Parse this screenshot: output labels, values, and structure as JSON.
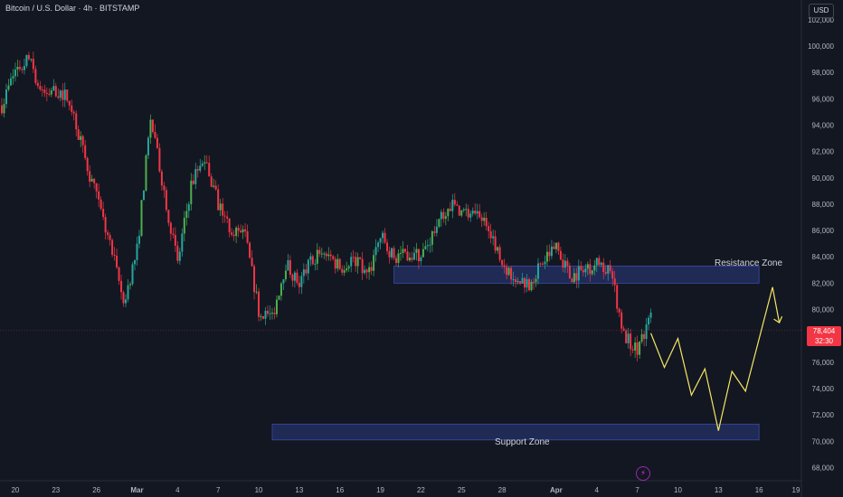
{
  "header": {
    "title": "Bitcoin / U.S. Dollar · 4h · BITSTAMP",
    "currency_button": "USD"
  },
  "price_tag": {
    "price": "78,404",
    "countdown": "32:30",
    "color": "#f23645"
  },
  "colors": {
    "up": "#26a69a",
    "up_bright": "#4caf50",
    "down": "#f23645",
    "zone": "#2a3a80",
    "projection": "#f5e663",
    "background": "#131722"
  },
  "icons": {
    "bottom": "lightning-icon"
  },
  "chart_data": {
    "type": "candlestick",
    "title": "Bitcoin / U.S. Dollar · 4h · BITSTAMP",
    "y_axis": {
      "ticks": [
        "102,000",
        "100,000",
        "98,000",
        "96,000",
        "94,000",
        "92,000",
        "90,000",
        "88,000",
        "86,000",
        "84,000",
        "82,000",
        "80,000",
        "78,000",
        "76,000",
        "74,000",
        "72,000",
        "70,000",
        "68,000"
      ],
      "range": [
        67000,
        103500
      ],
      "position": "right"
    },
    "x_axis": {
      "ticks": [
        "20",
        "23",
        "26",
        "Mar",
        "4",
        "7",
        "10",
        "13",
        "16",
        "19",
        "22",
        "25",
        "28",
        "Apr",
        "4",
        "7",
        "10",
        "13",
        "16",
        "19"
      ],
      "range_days": [
        "2025-02-19",
        "2025-04-19"
      ]
    },
    "price_path": [
      [
        "2025-02-19",
        95500
      ],
      [
        "2025-02-20",
        98200
      ],
      [
        "2025-02-21",
        99000
      ],
      [
        "2025-02-22",
        96200
      ],
      [
        "2025-02-23",
        96700
      ],
      [
        "2025-02-24",
        96000
      ],
      [
        "2025-02-25",
        92000
      ],
      [
        "2025-02-26",
        88500
      ],
      [
        "2025-02-27",
        85000
      ],
      [
        "2025-02-28",
        80500
      ],
      [
        "2025-03-01",
        84500
      ],
      [
        "2025-03-02",
        94500
      ],
      [
        "2025-03-03",
        89000
      ],
      [
        "2025-03-04",
        83500
      ],
      [
        "2025-03-05",
        89500
      ],
      [
        "2025-03-06",
        91500
      ],
      [
        "2025-03-07",
        88000
      ],
      [
        "2025-03-08",
        86000
      ],
      [
        "2025-03-09",
        85500
      ],
      [
        "2025-03-10",
        80000
      ],
      [
        "2025-03-11",
        79500
      ],
      [
        "2025-03-12",
        83500
      ],
      [
        "2025-03-13",
        82000
      ],
      [
        "2025-03-14",
        84000
      ],
      [
        "2025-03-15",
        84300
      ],
      [
        "2025-03-16",
        83200
      ],
      [
        "2025-03-17",
        84000
      ],
      [
        "2025-03-18",
        82500
      ],
      [
        "2025-03-19",
        85500
      ],
      [
        "2025-03-20",
        84000
      ],
      [
        "2025-03-21",
        84300
      ],
      [
        "2025-03-22",
        84000
      ],
      [
        "2025-03-23",
        86000
      ],
      [
        "2025-03-24",
        88000
      ],
      [
        "2025-03-25",
        87500
      ],
      [
        "2025-03-26",
        87000
      ],
      [
        "2025-03-27",
        86500
      ],
      [
        "2025-03-28",
        83500
      ],
      [
        "2025-03-29",
        82500
      ],
      [
        "2025-03-30",
        82000
      ],
      [
        "2025-03-31",
        83500
      ],
      [
        "2025-04-01",
        85000
      ],
      [
        "2025-04-02",
        82500
      ],
      [
        "2025-04-03",
        83000
      ],
      [
        "2025-04-04",
        83500
      ],
      [
        "2025-04-05",
        83200
      ],
      [
        "2025-04-06",
        78000
      ],
      [
        "2025-04-07",
        77000
      ],
      [
        "2025-04-08",
        79500
      ]
    ],
    "zones": [
      {
        "name": "Resistance Zone",
        "x_from": "2025-03-20",
        "x_to": "2025-04-16",
        "y_from": 82000,
        "y_to": 83300,
        "label_position": "above-right"
      },
      {
        "name": "Support Zone",
        "x_from": "2025-03-11",
        "x_to": "2025-04-16",
        "y_from": 70100,
        "y_to": 71300,
        "label_position": "below-center"
      }
    ],
    "projection_path": [
      [
        "2025-04-08",
        78200
      ],
      [
        "2025-04-09",
        75600
      ],
      [
        "2025-04-10",
        77800
      ],
      [
        "2025-04-11",
        73500
      ],
      [
        "2025-04-12",
        75500
      ],
      [
        "2025-04-13",
        70800
      ],
      [
        "2025-04-14",
        75300
      ],
      [
        "2025-04-15",
        73800
      ],
      [
        "2025-04-17",
        81700
      ],
      [
        "2025-04-17T12",
        79000
      ]
    ],
    "last_price": 78404
  }
}
